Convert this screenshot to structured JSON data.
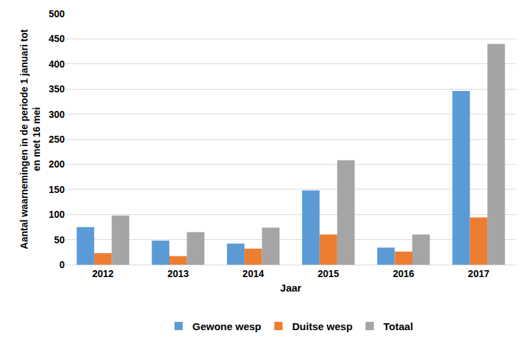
{
  "chart_data": {
    "type": "bar",
    "x_label": "Jaar",
    "y_label": "Aantal waarnemingen in de periode 1 januari tot en met 16 mei",
    "categories": [
      "2012",
      "2013",
      "2014",
      "2015",
      "2016",
      "2017"
    ],
    "series": [
      {
        "name": "Gewone wesp",
        "color": "#5b9bd5",
        "values": [
          75,
          48,
          42,
          148,
          34,
          346
        ]
      },
      {
        "name": "Duitse wesp",
        "color": "#ed7d31",
        "values": [
          23,
          17,
          32,
          60,
          26,
          94
        ]
      },
      {
        "name": "Totaal",
        "color": "#a5a5a5",
        "values": [
          98,
          65,
          74,
          208,
          60,
          440
        ]
      }
    ],
    "ylim": [
      0,
      500
    ],
    "yticks": [
      0,
      50,
      100,
      150,
      200,
      250,
      300,
      350,
      400,
      450,
      500
    ],
    "grid": true,
    "legend": "bottom"
  }
}
